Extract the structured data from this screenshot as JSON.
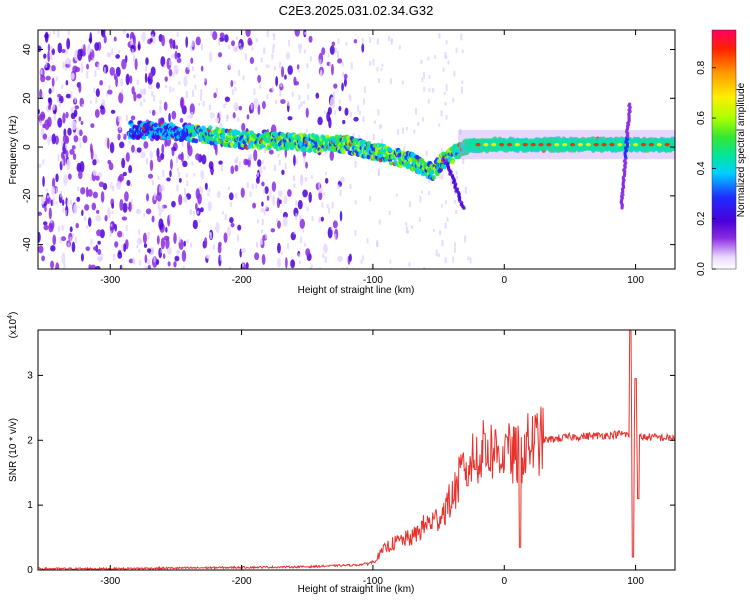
{
  "figure": {
    "title": "C2E3.2025.031.02.34.G32"
  },
  "chart_data": [
    {
      "type": "heatmap",
      "title": "C2E3.2025.031.02.34.G32",
      "xlabel": "Height of straight line (km)",
      "ylabel": "Frequency (Hz)",
      "xlim": [
        -355,
        130
      ],
      "ylim": [
        -50,
        48
      ],
      "xticks": [
        -300,
        -200,
        -100,
        0,
        100
      ],
      "yticks": [
        -40,
        -20,
        0,
        20,
        40
      ],
      "colorbar": {
        "label": "Normalized spectral amplitude",
        "range": [
          0,
          0.95
        ],
        "ticks": [
          0.0,
          0.2,
          0.4,
          0.6,
          0.8
        ],
        "colors": [
          "#ffffff",
          "#e9d8ff",
          "#8a2be2",
          "#4b00d9",
          "#1f2bff",
          "#00cfff",
          "#00e6a0",
          "#33e633",
          "#aaff00",
          "#ffee00",
          "#ff9900",
          "#ff2200",
          "#ff0066"
        ]
      },
      "grid": false,
      "ridge": [
        {
          "x": -280,
          "y": 7
        },
        {
          "x": -240,
          "y": 6
        },
        {
          "x": -200,
          "y": 3
        },
        {
          "x": -160,
          "y": 2
        },
        {
          "x": -120,
          "y": 1
        },
        {
          "x": -90,
          "y": -3
        },
        {
          "x": -70,
          "y": -6
        },
        {
          "x": -55,
          "y": -10
        },
        {
          "x": -45,
          "y": -5
        },
        {
          "x": -30,
          "y": 0
        },
        {
          "x": -10,
          "y": 1
        },
        {
          "x": 0,
          "y": 1
        },
        {
          "x": 50,
          "y": 1
        },
        {
          "x": 100,
          "y": 1
        },
        {
          "x": 130,
          "y": 1
        }
      ]
    },
    {
      "type": "line",
      "xlabel": "Height of straight line (km)",
      "ylabel": "SNR (10 * v/v)",
      "yscale_label": "(x10",
      "yscale_exp": "4",
      "xlim": [
        -355,
        130
      ],
      "ylim": [
        0,
        3.7
      ],
      "xticks": [
        -300,
        -200,
        -100,
        0,
        100
      ],
      "yticks": [
        0,
        1,
        2,
        3
      ],
      "grid": false,
      "color": "#e8322e",
      "envelope": [
        {
          "x": -355,
          "y": 0.02
        },
        {
          "x": -300,
          "y": 0.02
        },
        {
          "x": -250,
          "y": 0.03
        },
        {
          "x": -200,
          "y": 0.04
        },
        {
          "x": -150,
          "y": 0.05
        },
        {
          "x": -110,
          "y": 0.08
        },
        {
          "x": -100,
          "y": 0.12
        },
        {
          "x": -90,
          "y": 0.35
        },
        {
          "x": -80,
          "y": 0.45
        },
        {
          "x": -70,
          "y": 0.5
        },
        {
          "x": -60,
          "y": 0.7
        },
        {
          "x": -50,
          "y": 0.8
        },
        {
          "x": -40,
          "y": 1.1
        },
        {
          "x": -30,
          "y": 1.6
        },
        {
          "x": -20,
          "y": 1.8
        },
        {
          "x": -10,
          "y": 1.85
        },
        {
          "x": 0,
          "y": 1.8
        },
        {
          "x": 10,
          "y": 1.75
        },
        {
          "x": 20,
          "y": 1.95
        },
        {
          "x": 30,
          "y": 2.0
        },
        {
          "x": 50,
          "y": 2.05
        },
        {
          "x": 80,
          "y": 2.08
        },
        {
          "x": 90,
          "y": 2.1
        },
        {
          "x": 100,
          "y": 2.05
        },
        {
          "x": 110,
          "y": 2.05
        },
        {
          "x": 130,
          "y": 2.03
        }
      ],
      "spikes": [
        {
          "x": -28,
          "y": 1.3
        },
        {
          "x": -22,
          "y": 1.55
        },
        {
          "x": -15,
          "y": 2.1
        },
        {
          "x": 2,
          "y": 2.05
        },
        {
          "x": 12,
          "y": 0.35
        },
        {
          "x": 96,
          "y": 3.7
        },
        {
          "x": 98,
          "y": 0.2
        },
        {
          "x": 100,
          "y": 2.95
        },
        {
          "x": 102,
          "y": 1.1
        }
      ]
    }
  ]
}
